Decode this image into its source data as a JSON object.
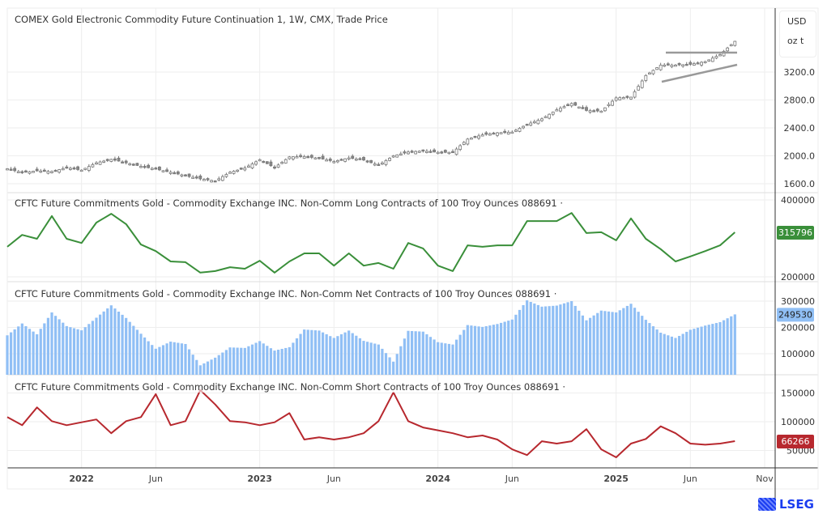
{
  "header": {
    "unit_currency": "USD",
    "unit_measure": "oz t",
    "logo_text": "LSEG"
  },
  "chart_data": [
    {
      "type": "candlestick",
      "title": "COMEX Gold Electronic Commodity Future Continuation 1, 1W, CMX, Trade Price",
      "yticks": [
        "3200.0",
        "2800.0",
        "2400.0",
        "2000.0",
        "1600.0"
      ],
      "ytick_values": [
        3200,
        2800,
        2400,
        2000,
        1600
      ],
      "close": [
        1815,
        1760,
        1785,
        1775,
        1830,
        1795,
        1900,
        1950,
        1900,
        1850,
        1810,
        1765,
        1715,
        1670,
        1640,
        1765,
        1825,
        1945,
        1830,
        1985,
        1990,
        1965,
        1920,
        1970,
        1940,
        1865,
        2000,
        2055,
        2070,
        2050,
        2050,
        2240,
        2300,
        2330,
        2340,
        2450,
        2530,
        2660,
        2750,
        2650,
        2640,
        2830,
        2840,
        3150,
        3300,
        3300,
        3310,
        3350,
        3450,
        3640
      ],
      "annotation": "triangle-pattern",
      "color": "#888888"
    },
    {
      "type": "line",
      "title": "CFTC Future Commitments Gold - Commodity Exchange INC. Non-Comm Long Contracts of 100 Troy Ounces 088691 ·",
      "yticks": [
        "400000",
        "200000"
      ],
      "ytick_values": [
        400000,
        200000
      ],
      "last_value": "315796",
      "values": [
        278000,
        309000,
        299000,
        358000,
        299000,
        288000,
        341000,
        364000,
        337000,
        284000,
        267000,
        240000,
        238000,
        211000,
        215000,
        225000,
        221000,
        242000,
        211000,
        240000,
        261000,
        261000,
        229000,
        261000,
        229000,
        236000,
        221000,
        288000,
        274000,
        229000,
        215000,
        282000,
        278000,
        282000,
        282000,
        345000,
        345000,
        345000,
        366000,
        314000,
        316000,
        295000,
        352000,
        299000,
        272000,
        240000,
        253000,
        267000,
        282000,
        315796
      ],
      "color": "#3a8f3a"
    },
    {
      "type": "bar",
      "title": "CFTC Future Commitments Gold - Commodity Exchange INC. Non-Comm Net Contracts of 100 Troy Ounces 088691 ·",
      "yticks": [
        "300000",
        "200000",
        "100000"
      ],
      "ytick_values": [
        300000,
        200000,
        100000
      ],
      "last_value": "249530",
      "values": [
        170000,
        215000,
        174000,
        257000,
        205000,
        189000,
        237000,
        284000,
        236000,
        176000,
        119000,
        146000,
        137000,
        56000,
        85000,
        124000,
        122000,
        148000,
        112000,
        125000,
        192000,
        188000,
        160000,
        188000,
        149000,
        135000,
        70000,
        187000,
        184000,
        144000,
        135000,
        209000,
        202000,
        213000,
        230000,
        303000,
        279000,
        283000,
        300000,
        227000,
        264000,
        257000,
        290000,
        229000,
        180000,
        160000,
        191000,
        207000,
        220000,
        249530
      ],
      "color": "#90bff5"
    },
    {
      "type": "line",
      "title": "CFTC Future Commitments Gold - Commodity Exchange INC. Non-Comm Short Contracts of 100 Troy Ounces 088691 ·",
      "yticks": [
        "150000",
        "100000",
        "50000"
      ],
      "ytick_values": [
        150000,
        100000,
        50000
      ],
      "last_value": "66266",
      "values": [
        108000,
        94000,
        125000,
        101000,
        94000,
        99000,
        104000,
        80000,
        101000,
        108000,
        148000,
        94000,
        101000,
        155000,
        130000,
        101000,
        99000,
        94000,
        99000,
        115000,
        69000,
        73000,
        69000,
        73000,
        80000,
        101000,
        151000,
        101000,
        90000,
        85000,
        80000,
        73000,
        76000,
        69000,
        52000,
        42000,
        66000,
        62000,
        66000,
        87000,
        52000,
        38000,
        62000,
        70000,
        92000,
        80000,
        62000,
        60000,
        62000,
        66266
      ],
      "color": "#b7282e"
    }
  ],
  "x_axis": {
    "dates_start": "2021-08",
    "frequency": "monthly samples",
    "labels": [
      "2022",
      "Jun",
      "2023",
      "Jun",
      "2024",
      "Jun",
      "2025",
      "Jun",
      "Nov"
    ],
    "label_months": [
      5,
      10,
      17,
      22,
      29,
      34,
      41,
      46,
      51
    ]
  }
}
